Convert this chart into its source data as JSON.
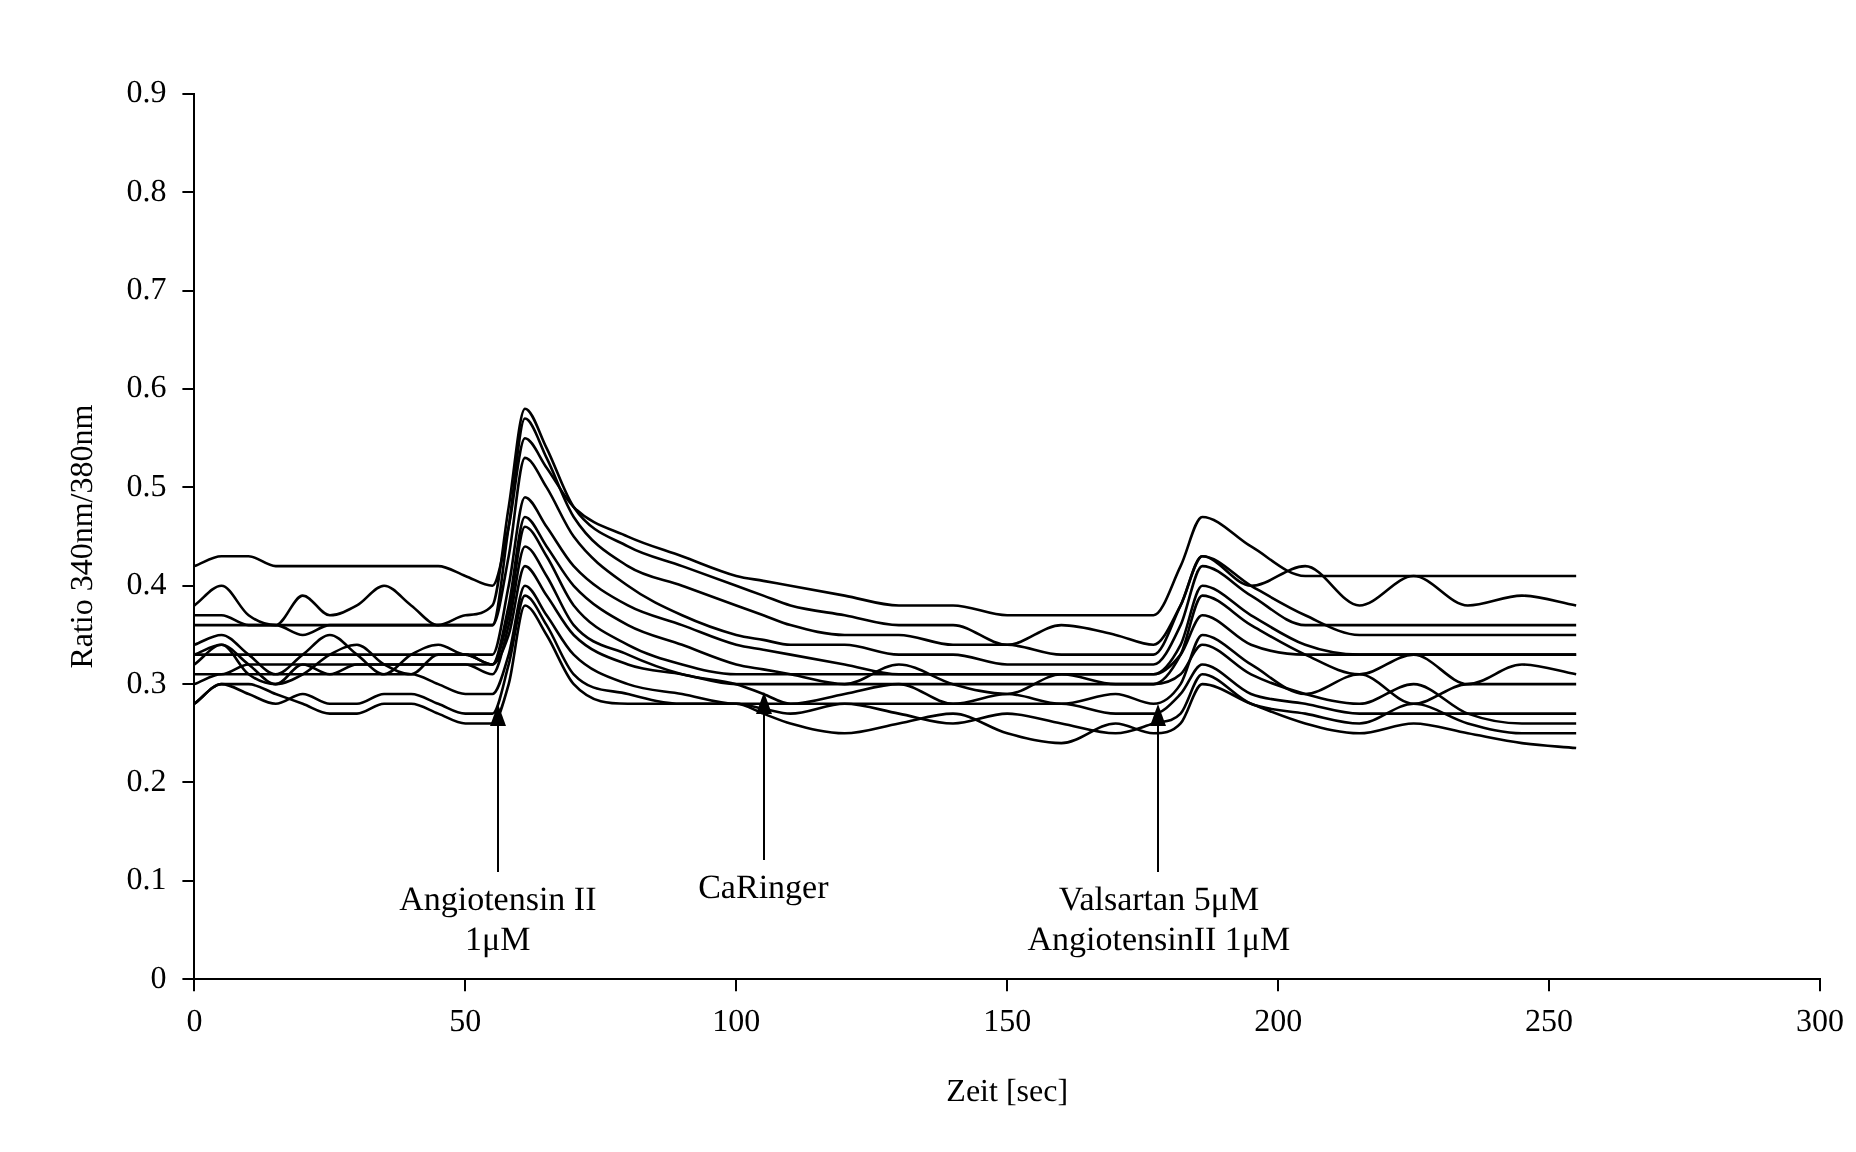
{
  "chart_data": {
    "type": "line",
    "xlabel": "Zeit [sec]",
    "ylabel": "Ratio 340nm/380nm",
    "x": [
      0,
      5,
      10,
      15,
      20,
      25,
      30,
      35,
      40,
      45,
      50,
      55,
      58,
      61,
      65,
      70,
      80,
      90,
      100,
      105,
      110,
      120,
      130,
      140,
      150,
      160,
      170,
      177,
      182,
      186,
      195,
      205,
      215,
      225,
      235,
      245,
      255
    ],
    "xlim": [
      0,
      300
    ],
    "xticks": [
      0,
      50,
      100,
      150,
      200,
      250,
      300
    ],
    "ylim": [
      0,
      0.9
    ],
    "yticks": [
      0,
      0.1,
      0.2,
      0.3,
      0.4,
      0.5,
      0.6,
      0.7,
      0.8,
      0.9
    ],
    "grid": false,
    "legend": false,
    "marker": "none",
    "line_style": "solid",
    "series": [
      {
        "color": "#000000",
        "values": [
          0.42,
          0.43,
          0.43,
          0.42,
          0.42,
          0.42,
          0.42,
          0.42,
          0.42,
          0.42,
          0.41,
          0.4,
          0.46,
          0.55,
          0.52,
          0.48,
          0.45,
          0.43,
          0.41,
          0.405,
          0.4,
          0.39,
          0.38,
          0.38,
          0.37,
          0.37,
          0.37,
          0.37,
          0.42,
          0.47,
          0.44,
          0.41,
          0.41,
          0.41,
          0.41,
          0.41,
          0.41
        ]
      },
      {
        "color": "#000000",
        "values": [
          0.38,
          0.4,
          0.37,
          0.36,
          0.39,
          0.37,
          0.38,
          0.4,
          0.38,
          0.36,
          0.37,
          0.38,
          0.48,
          0.58,
          0.54,
          0.48,
          0.44,
          0.42,
          0.4,
          0.39,
          0.38,
          0.37,
          0.36,
          0.36,
          0.34,
          0.36,
          0.35,
          0.34,
          0.38,
          0.43,
          0.4,
          0.42,
          0.38,
          0.41,
          0.38,
          0.39,
          0.38
        ]
      },
      {
        "color": "#000000",
        "values": [
          0.37,
          0.37,
          0.36,
          0.36,
          0.35,
          0.36,
          0.36,
          0.36,
          0.36,
          0.36,
          0.36,
          0.36,
          0.46,
          0.57,
          0.53,
          0.47,
          0.42,
          0.4,
          0.38,
          0.37,
          0.36,
          0.35,
          0.35,
          0.34,
          0.34,
          0.33,
          0.33,
          0.33,
          0.38,
          0.43,
          0.4,
          0.37,
          0.35,
          0.35,
          0.35,
          0.35,
          0.35
        ]
      },
      {
        "color": "#000000",
        "values": [
          0.36,
          0.36,
          0.36,
          0.36,
          0.36,
          0.36,
          0.36,
          0.36,
          0.36,
          0.36,
          0.36,
          0.36,
          0.43,
          0.53,
          0.5,
          0.45,
          0.4,
          0.37,
          0.35,
          0.345,
          0.34,
          0.34,
          0.33,
          0.33,
          0.32,
          0.32,
          0.32,
          0.32,
          0.36,
          0.42,
          0.39,
          0.36,
          0.36,
          0.36,
          0.36,
          0.36,
          0.36
        ]
      },
      {
        "color": "#000000",
        "values": [
          0.34,
          0.35,
          0.33,
          0.31,
          0.33,
          0.35,
          0.33,
          0.31,
          0.33,
          0.34,
          0.33,
          0.33,
          0.4,
          0.49,
          0.46,
          0.42,
          0.38,
          0.36,
          0.34,
          0.335,
          0.33,
          0.32,
          0.31,
          0.31,
          0.31,
          0.31,
          0.31,
          0.31,
          0.34,
          0.4,
          0.37,
          0.34,
          0.33,
          0.33,
          0.33,
          0.33,
          0.33
        ]
      },
      {
        "color": "#000000",
        "values": [
          0.33,
          0.34,
          0.32,
          0.3,
          0.31,
          0.33,
          0.34,
          0.32,
          0.31,
          0.33,
          0.33,
          0.32,
          0.38,
          0.47,
          0.44,
          0.4,
          0.36,
          0.34,
          0.32,
          0.315,
          0.31,
          0.3,
          0.32,
          0.3,
          0.29,
          0.31,
          0.3,
          0.3,
          0.33,
          0.39,
          0.36,
          0.33,
          0.31,
          0.33,
          0.3,
          0.32,
          0.31
        ]
      },
      {
        "color": "#000000",
        "values": [
          0.33,
          0.33,
          0.33,
          0.33,
          0.33,
          0.33,
          0.33,
          0.33,
          0.33,
          0.33,
          0.33,
          0.32,
          0.37,
          0.46,
          0.43,
          0.38,
          0.34,
          0.32,
          0.31,
          0.31,
          0.31,
          0.31,
          0.31,
          0.31,
          0.31,
          0.31,
          0.31,
          0.31,
          0.33,
          0.37,
          0.34,
          0.33,
          0.33,
          0.33,
          0.33,
          0.33,
          0.33
        ]
      },
      {
        "color": "#000000",
        "values": [
          0.32,
          0.34,
          0.31,
          0.3,
          0.32,
          0.31,
          0.32,
          0.32,
          0.32,
          0.32,
          0.32,
          0.31,
          0.36,
          0.44,
          0.41,
          0.36,
          0.33,
          0.31,
          0.3,
          0.29,
          0.28,
          0.29,
          0.3,
          0.28,
          0.29,
          0.28,
          0.29,
          0.28,
          0.3,
          0.35,
          0.32,
          0.29,
          0.31,
          0.28,
          0.3,
          0.3,
          0.3
        ]
      },
      {
        "color": "#000000",
        "values": [
          0.31,
          0.31,
          0.32,
          0.32,
          0.32,
          0.32,
          0.32,
          0.32,
          0.32,
          0.32,
          0.32,
          0.32,
          0.35,
          0.42,
          0.39,
          0.35,
          0.32,
          0.31,
          0.3,
          0.3,
          0.3,
          0.3,
          0.3,
          0.3,
          0.3,
          0.3,
          0.3,
          0.3,
          0.31,
          0.34,
          0.31,
          0.29,
          0.28,
          0.3,
          0.27,
          0.26,
          0.26
        ]
      },
      {
        "color": "#000000",
        "values": [
          0.3,
          0.31,
          0.31,
          0.31,
          0.31,
          0.31,
          0.31,
          0.31,
          0.31,
          0.3,
          0.29,
          0.29,
          0.33,
          0.4,
          0.37,
          0.33,
          0.3,
          0.29,
          0.28,
          0.28,
          0.28,
          0.28,
          0.28,
          0.28,
          0.28,
          0.28,
          0.27,
          0.27,
          0.29,
          0.32,
          0.29,
          0.28,
          0.27,
          0.27,
          0.27,
          0.27,
          0.27
        ]
      },
      {
        "color": "#000000",
        "values": [
          0.28,
          0.3,
          0.29,
          0.28,
          0.29,
          0.28,
          0.28,
          0.29,
          0.29,
          0.28,
          0.27,
          0.27,
          0.32,
          0.39,
          0.36,
          0.31,
          0.29,
          0.28,
          0.28,
          0.275,
          0.27,
          0.28,
          0.27,
          0.26,
          0.27,
          0.26,
          0.25,
          0.26,
          0.27,
          0.31,
          0.28,
          0.27,
          0.26,
          0.28,
          0.26,
          0.25,
          0.25
        ]
      },
      {
        "color": "#000000",
        "values": [
          0.28,
          0.3,
          0.3,
          0.29,
          0.28,
          0.27,
          0.27,
          0.28,
          0.28,
          0.27,
          0.26,
          0.26,
          0.3,
          0.38,
          0.35,
          0.3,
          0.28,
          0.28,
          0.28,
          0.27,
          0.26,
          0.25,
          0.26,
          0.27,
          0.25,
          0.24,
          0.26,
          0.25,
          0.26,
          0.3,
          0.28,
          0.26,
          0.25,
          0.26,
          0.25,
          0.24,
          0.235
        ]
      }
    ],
    "annotations": [
      {
        "text": "Angiotensin II\n1μM",
        "x": 56
      },
      {
        "text": "CaRinger",
        "x": 105
      },
      {
        "text": "Valsartan 5μM\nAngiotensinII 1μM",
        "x": 178
      }
    ]
  }
}
